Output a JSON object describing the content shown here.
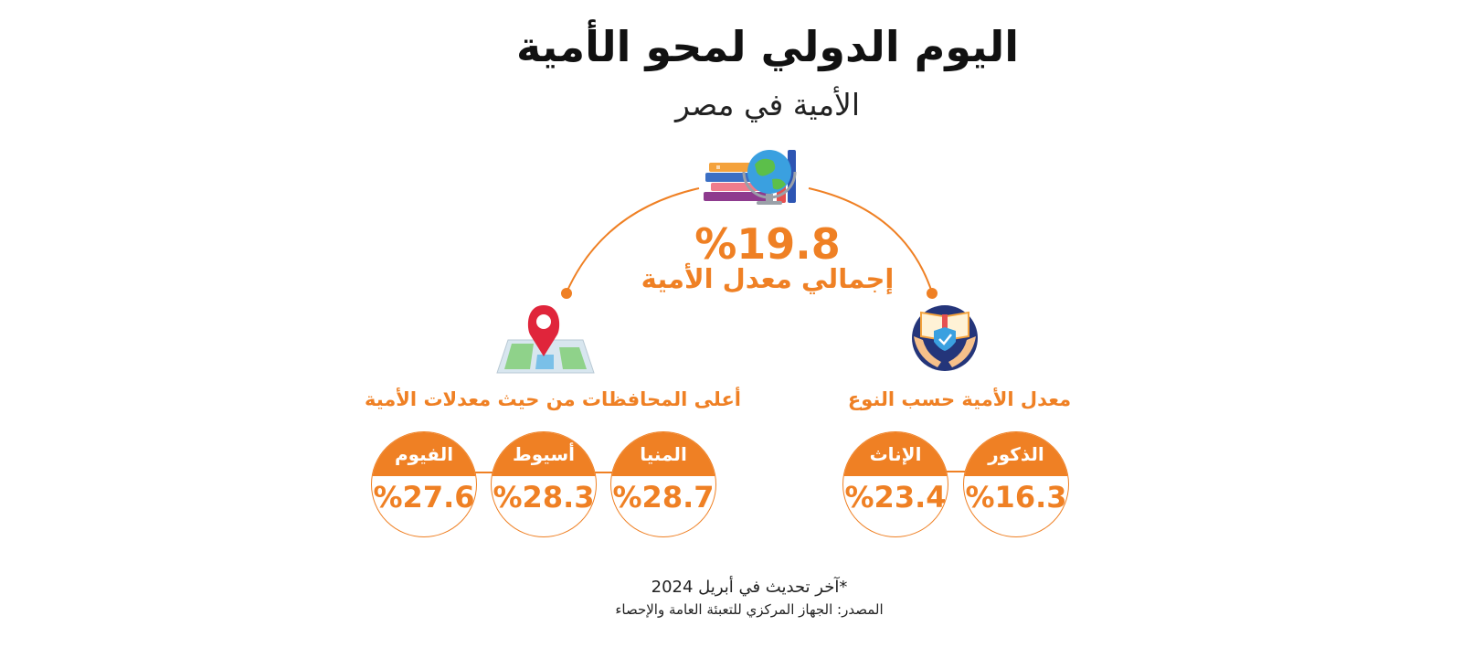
{
  "header": {
    "title": "اليوم الدولي لمحو الأمية",
    "subtitle": "الأمية في مصر"
  },
  "total": {
    "value": "%19.8",
    "label": "إجمالي معدل الأمية"
  },
  "gender": {
    "heading": "معدل الأمية حسب النوع",
    "items": [
      {
        "label": "الذكور",
        "value": "%16.3"
      },
      {
        "label": "الإناث",
        "value": "%23.4"
      }
    ]
  },
  "governorates": {
    "heading": "أعلى المحافظات من حيث معدلات الأمية",
    "items": [
      {
        "label": "المنيا",
        "value": "%28.7"
      },
      {
        "label": "أسيوط",
        "value": "%28.3"
      },
      {
        "label": "الفيوم",
        "value": "%27.6"
      }
    ]
  },
  "footer": {
    "note": "*آخر تحديث في أبريل 2024",
    "source": "المصدر: الجهاز المركزي للتعبئة العامة والإحصاء"
  },
  "colors": {
    "accent": "#ef8024",
    "text": "#111111"
  },
  "icons": {
    "top": "books-globe-icon",
    "left": "map-pin-icon",
    "right": "hands-book-icon"
  }
}
